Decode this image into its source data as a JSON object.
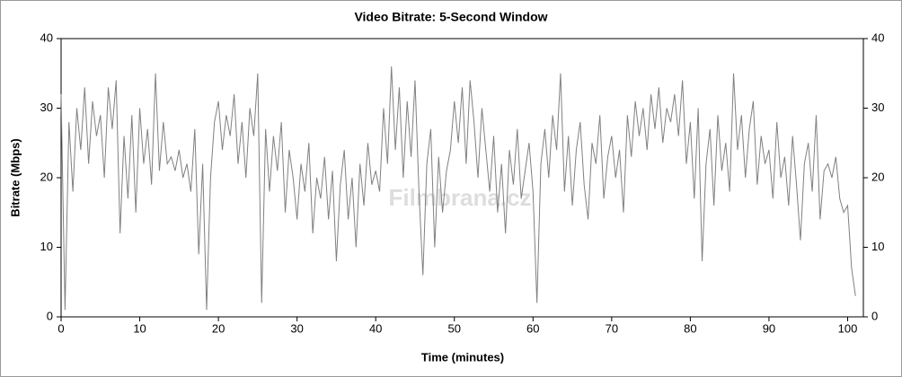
{
  "chart_data": {
    "type": "line",
    "title": "Video Bitrate: 5-Second Window",
    "x_label": "Time (minutes)",
    "y_label": "Bitrate (Mbps)",
    "watermark": "Filmbrana.cz",
    "xlim": [
      0,
      102
    ],
    "xticks": [
      0,
      10,
      20,
      30,
      40,
      50,
      60,
      70,
      80,
      90,
      100
    ],
    "ylim": [
      0,
      40
    ],
    "yticks": [
      0,
      10,
      20,
      30,
      40
    ],
    "y2lim": [
      0,
      40
    ],
    "y2ticks": [
      0,
      10,
      20,
      30,
      40
    ],
    "grid": false,
    "x": [
      0,
      0.5,
      1,
      1.5,
      2,
      2.5,
      3,
      3.5,
      4,
      4.5,
      5,
      5.5,
      6,
      6.5,
      7,
      7.5,
      8,
      8.5,
      9,
      9.5,
      10,
      10.5,
      11,
      11.5,
      12,
      12.5,
      13,
      13.5,
      14,
      14.5,
      15,
      15.5,
      16,
      16.5,
      17,
      17.5,
      18,
      18.5,
      19,
      19.5,
      20,
      20.5,
      21,
      21.5,
      22,
      22.5,
      23,
      23.5,
      24,
      24.5,
      25,
      25.5,
      26,
      26.5,
      27,
      27.5,
      28,
      28.5,
      29,
      29.5,
      30,
      30.5,
      31,
      31.5,
      32,
      32.5,
      33,
      33.5,
      34,
      34.5,
      35,
      35.5,
      36,
      36.5,
      37,
      37.5,
      38,
      38.5,
      39,
      39.5,
      40,
      40.5,
      41,
      41.5,
      42,
      42.5,
      43,
      43.5,
      44,
      44.5,
      45,
      45.5,
      46,
      46.5,
      47,
      47.5,
      48,
      48.5,
      49,
      49.5,
      50,
      50.5,
      51,
      51.5,
      52,
      52.5,
      53,
      53.5,
      54,
      54.5,
      55,
      55.5,
      56,
      56.5,
      57,
      57.5,
      58,
      58.5,
      59,
      59.5,
      60,
      60.5,
      61,
      61.5,
      62,
      62.5,
      63,
      63.5,
      64,
      64.5,
      65,
      65.5,
      66,
      66.5,
      67,
      67.5,
      68,
      68.5,
      69,
      69.5,
      70,
      70.5,
      71,
      71.5,
      72,
      72.5,
      73,
      73.5,
      74,
      74.5,
      75,
      75.5,
      76,
      76.5,
      77,
      77.5,
      78,
      78.5,
      79,
      79.5,
      80,
      80.5,
      81,
      81.5,
      82,
      82.5,
      83,
      83.5,
      84,
      84.5,
      85,
      85.5,
      86,
      86.5,
      87,
      87.5,
      88,
      88.5,
      89,
      89.5,
      90,
      90.5,
      91,
      91.5,
      92,
      92.5,
      93,
      93.5,
      94,
      94.5,
      95,
      95.5,
      96,
      96.5,
      97,
      97.5,
      98,
      98.5,
      99,
      99.5,
      100,
      100.5,
      101
    ],
    "series": [
      {
        "name": "Bitrate",
        "color": "#808080",
        "values": [
          32,
          1,
          28,
          18,
          30,
          24,
          33,
          22,
          31,
          26,
          29,
          20,
          33,
          27,
          34,
          12,
          26,
          17,
          29,
          15,
          30,
          22,
          27,
          19,
          35,
          21,
          28,
          22,
          23,
          21,
          24,
          20,
          22,
          18,
          27,
          9,
          22,
          1,
          20,
          28,
          31,
          24,
          29,
          26,
          32,
          22,
          28,
          20,
          30,
          26,
          35,
          2,
          27,
          18,
          26,
          21,
          28,
          15,
          24,
          20,
          14,
          22,
          18,
          25,
          12,
          20,
          17,
          23,
          14,
          21,
          8,
          19,
          24,
          14,
          20,
          10,
          22,
          16,
          25,
          19,
          21,
          18,
          30,
          22,
          36,
          24,
          33,
          20,
          31,
          23,
          34,
          18,
          6,
          22,
          27,
          10,
          23,
          15,
          21,
          24,
          31,
          25,
          33,
          22,
          34,
          28,
          20,
          30,
          24,
          18,
          26,
          15,
          22,
          12,
          24,
          19,
          27,
          17,
          21,
          25,
          18,
          2,
          22,
          27,
          20,
          29,
          24,
          35,
          18,
          26,
          16,
          24,
          28,
          19,
          14,
          25,
          22,
          29,
          17,
          23,
          26,
          20,
          24,
          15,
          29,
          23,
          31,
          26,
          30,
          24,
          32,
          27,
          33,
          25,
          30,
          28,
          32,
          26,
          34,
          22,
          28,
          17,
          30,
          8,
          22,
          27,
          16,
          29,
          21,
          25,
          18,
          35,
          24,
          29,
          20,
          27,
          31,
          19,
          26,
          22,
          24,
          17,
          28,
          20,
          23,
          16,
          26,
          19,
          11,
          22,
          25,
          18,
          29,
          14,
          21,
          22,
          20,
          23,
          17,
          15,
          16,
          7,
          3
        ]
      }
    ]
  }
}
